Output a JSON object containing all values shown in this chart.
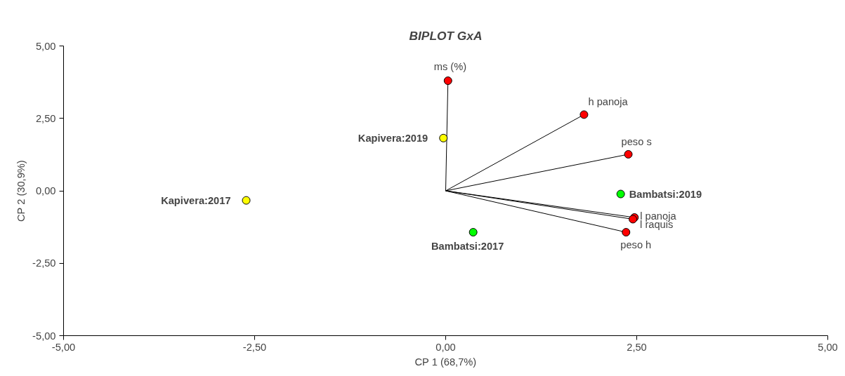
{
  "chart_data": {
    "type": "scatter",
    "title": "BIPLOT GxA",
    "xlabel": "CP 1 (68,7%)",
    "ylabel": "CP 2 (30,9%)",
    "xlim": [
      -5,
      5
    ],
    "ylim": [
      -5,
      5
    ],
    "xticks": [
      {
        "value": -5,
        "label": "-5,00"
      },
      {
        "value": -2.5,
        "label": "-2,50"
      },
      {
        "value": 0,
        "label": "0,00"
      },
      {
        "value": 2.5,
        "label": "2,50"
      },
      {
        "value": 5,
        "label": "5,00"
      }
    ],
    "yticks": [
      {
        "value": -5,
        "label": "-5,00"
      },
      {
        "value": -2.5,
        "label": "-2,50"
      },
      {
        "value": 0,
        "label": "0,00"
      },
      {
        "value": 2.5,
        "label": "2,50"
      },
      {
        "value": 5,
        "label": "5,00"
      }
    ],
    "grid": false,
    "marker": "circle",
    "series": [
      {
        "type": "line",
        "marker": "none",
        "color": "#000000",
        "x": [
          0,
          0.03
        ],
        "values": [
          0,
          3.8
        ]
      },
      {
        "type": "line",
        "marker": "none",
        "color": "#000000",
        "x": [
          0,
          1.81
        ],
        "values": [
          0,
          2.63
        ]
      },
      {
        "type": "line",
        "marker": "none",
        "color": "#000000",
        "x": [
          0,
          2.39
        ],
        "values": [
          0,
          1.26
        ]
      },
      {
        "type": "line",
        "marker": "none",
        "color": "#000000",
        "x": [
          0,
          2.47
        ],
        "values": [
          0,
          -0.92
        ]
      },
      {
        "type": "line",
        "marker": "none",
        "color": "#000000",
        "x": [
          0,
          2.45
        ],
        "values": [
          0,
          -0.98
        ]
      },
      {
        "type": "line",
        "marker": "none",
        "color": "#000000",
        "x": [
          0,
          2.36
        ],
        "values": [
          0,
          -1.43
        ]
      },
      {
        "color": "#ff0000",
        "x": [
          0.03,
          1.81,
          2.39,
          2.47,
          2.45,
          2.36
        ],
        "values": [
          3.8,
          2.63,
          1.26,
          -0.92,
          -0.98,
          -1.43
        ]
      },
      {
        "name": "Kapivera:2019",
        "color": "#ffff00",
        "x": [
          -0.03
        ],
        "values": [
          1.82
        ]
      },
      {
        "name": "Kapivera:2017",
        "color": "#ffff00",
        "x": [
          -2.61
        ],
        "values": [
          -0.33
        ]
      },
      {
        "name": "Bambatsi:2019",
        "color": "#00ff00",
        "x": [
          2.29
        ],
        "values": [
          -0.11
        ]
      },
      {
        "name": "Bambatsi:2017",
        "color": "#00ff00",
        "x": [
          0.36
        ],
        "values": [
          -1.43
        ]
      }
    ],
    "annotations": [
      {
        "text": "ms (%)",
        "x": 0.03,
        "y": 3.8
      },
      {
        "text": "h panoja",
        "x": 1.81,
        "y": 2.63
      },
      {
        "text": "peso s",
        "x": 2.39,
        "y": 1.26
      },
      {
        "text": "l panoja",
        "x": 2.47,
        "y": -0.92
      },
      {
        "text": "l raquis",
        "x": 2.45,
        "y": -0.98
      },
      {
        "text": "peso h",
        "x": 2.36,
        "y": -1.43
      }
    ]
  }
}
